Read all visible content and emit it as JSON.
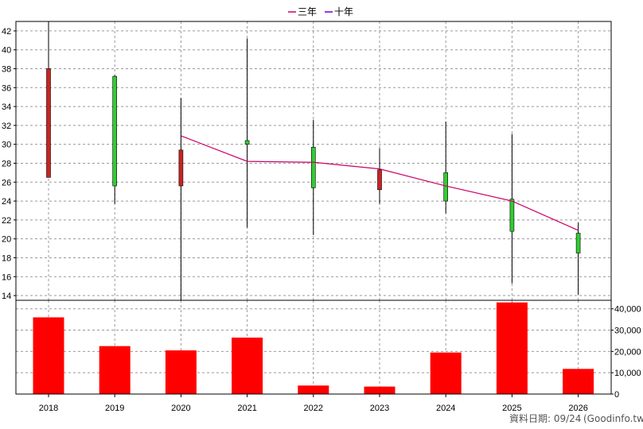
{
  "chart_data": {
    "type": "candlestick+bar",
    "legend": [
      {
        "label": "三年",
        "color": "#cc0066"
      },
      {
        "label": "十年",
        "color": "#6600cc"
      }
    ],
    "legend_position": "top-center",
    "grid": true,
    "categories": [
      "2018",
      "2019",
      "2020",
      "2021",
      "2022",
      "2023",
      "2024",
      "2025",
      "2026"
    ],
    "price_axis": {
      "ylim": [
        13.5,
        43
      ],
      "ticks": [
        14,
        16,
        18,
        20,
        22,
        24,
        26,
        28,
        30,
        32,
        34,
        36,
        38,
        40,
        42
      ],
      "position": "left"
    },
    "candles": [
      {
        "year": "2018",
        "open": 38.0,
        "close": 26.5,
        "high": 43.0,
        "low": 26.5
      },
      {
        "year": "2019",
        "open": 25.6,
        "close": 37.2,
        "high": 37.3,
        "low": 23.7
      },
      {
        "year": "2020",
        "open": 29.4,
        "close": 25.6,
        "high": 34.9,
        "low": 13.5
      },
      {
        "year": "2021",
        "open": 30.0,
        "close": 30.4,
        "high": 41.2,
        "low": 21.2
      },
      {
        "year": "2022",
        "open": 25.4,
        "close": 29.7,
        "high": 32.6,
        "low": 20.4
      },
      {
        "year": "2023",
        "open": 27.3,
        "close": 25.2,
        "high": 29.6,
        "low": 23.7
      },
      {
        "year": "2024",
        "open": 24.0,
        "close": 27.0,
        "high": 32.4,
        "low": 22.7
      },
      {
        "year": "2025",
        "open": 20.8,
        "close": 24.2,
        "high": 31.1,
        "low": 15.3
      },
      {
        "year": "2026",
        "open": 18.5,
        "close": 20.6,
        "high": 21.7,
        "low": 14.1
      }
    ],
    "candle_up_color": "#33cc33",
    "candle_down_color": "#cc2222",
    "three_year_line": [
      {
        "year": "2020",
        "value": 30.9
      },
      {
        "year": "2021",
        "value": 28.2
      },
      {
        "year": "2022",
        "value": 28.1
      },
      {
        "year": "2023",
        "value": 27.4
      },
      {
        "year": "2024",
        "value": 25.6
      },
      {
        "year": "2025",
        "value": 24.0
      },
      {
        "year": "2026",
        "value": 20.9
      }
    ],
    "volume_axis": {
      "ylim": [
        0,
        44000
      ],
      "ticks": [
        0,
        10000,
        20000,
        30000,
        40000
      ],
      "tick_labels": [
        "0",
        "10,000",
        "20,000",
        "30,000",
        "40,000"
      ],
      "position": "right"
    },
    "volume": [
      36000,
      22500,
      20500,
      26500,
      4000,
      3500,
      19500,
      43000,
      11800
    ],
    "volume_color": "#ff0000"
  },
  "footer": {
    "date_text": "資料日期: 09/24",
    "source_text": "(Goodinfo.tw)"
  }
}
